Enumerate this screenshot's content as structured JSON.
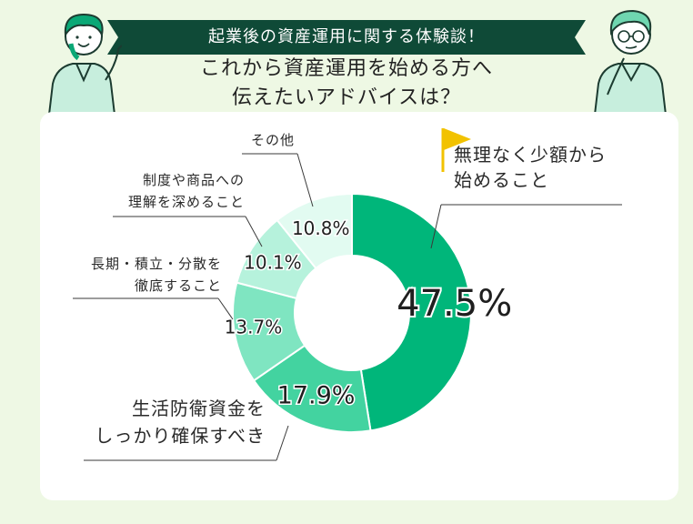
{
  "banner": "起業後の資産運用に関する体験談！",
  "title_line1": "これから資産運用を始める方へ",
  "title_line2": "伝えたいアドバイスは？",
  "colors": {
    "background": "#eef8e4",
    "banner": "#0f4a37",
    "flag": "#f2c200"
  },
  "chart_data": {
    "type": "pie",
    "donut": true,
    "unit": "%",
    "slices": [
      {
        "label_lines": [
          "無理なく少額から",
          "始めること"
        ],
        "value": 47.5,
        "value_label": "47.5%",
        "color": "#00b67a"
      },
      {
        "label_lines": [
          "生活防衛資金を",
          "しっかり確保すべき"
        ],
        "value": 17.9,
        "value_label": "17.9%",
        "color": "#43d3a0"
      },
      {
        "label_lines": [
          "長期・積立・分散を",
          "徹底すること"
        ],
        "value": 13.7,
        "value_label": "13.7%",
        "color": "#7fe5c1"
      },
      {
        "label_lines": [
          "制度や商品への",
          "理解を深めること"
        ],
        "value": 10.1,
        "value_label": "10.1%",
        "color": "#b6f2dc"
      },
      {
        "label_lines": [
          "その他"
        ],
        "value": 10.8,
        "value_label": "10.8%",
        "color": "#e2fbf1"
      }
    ]
  }
}
